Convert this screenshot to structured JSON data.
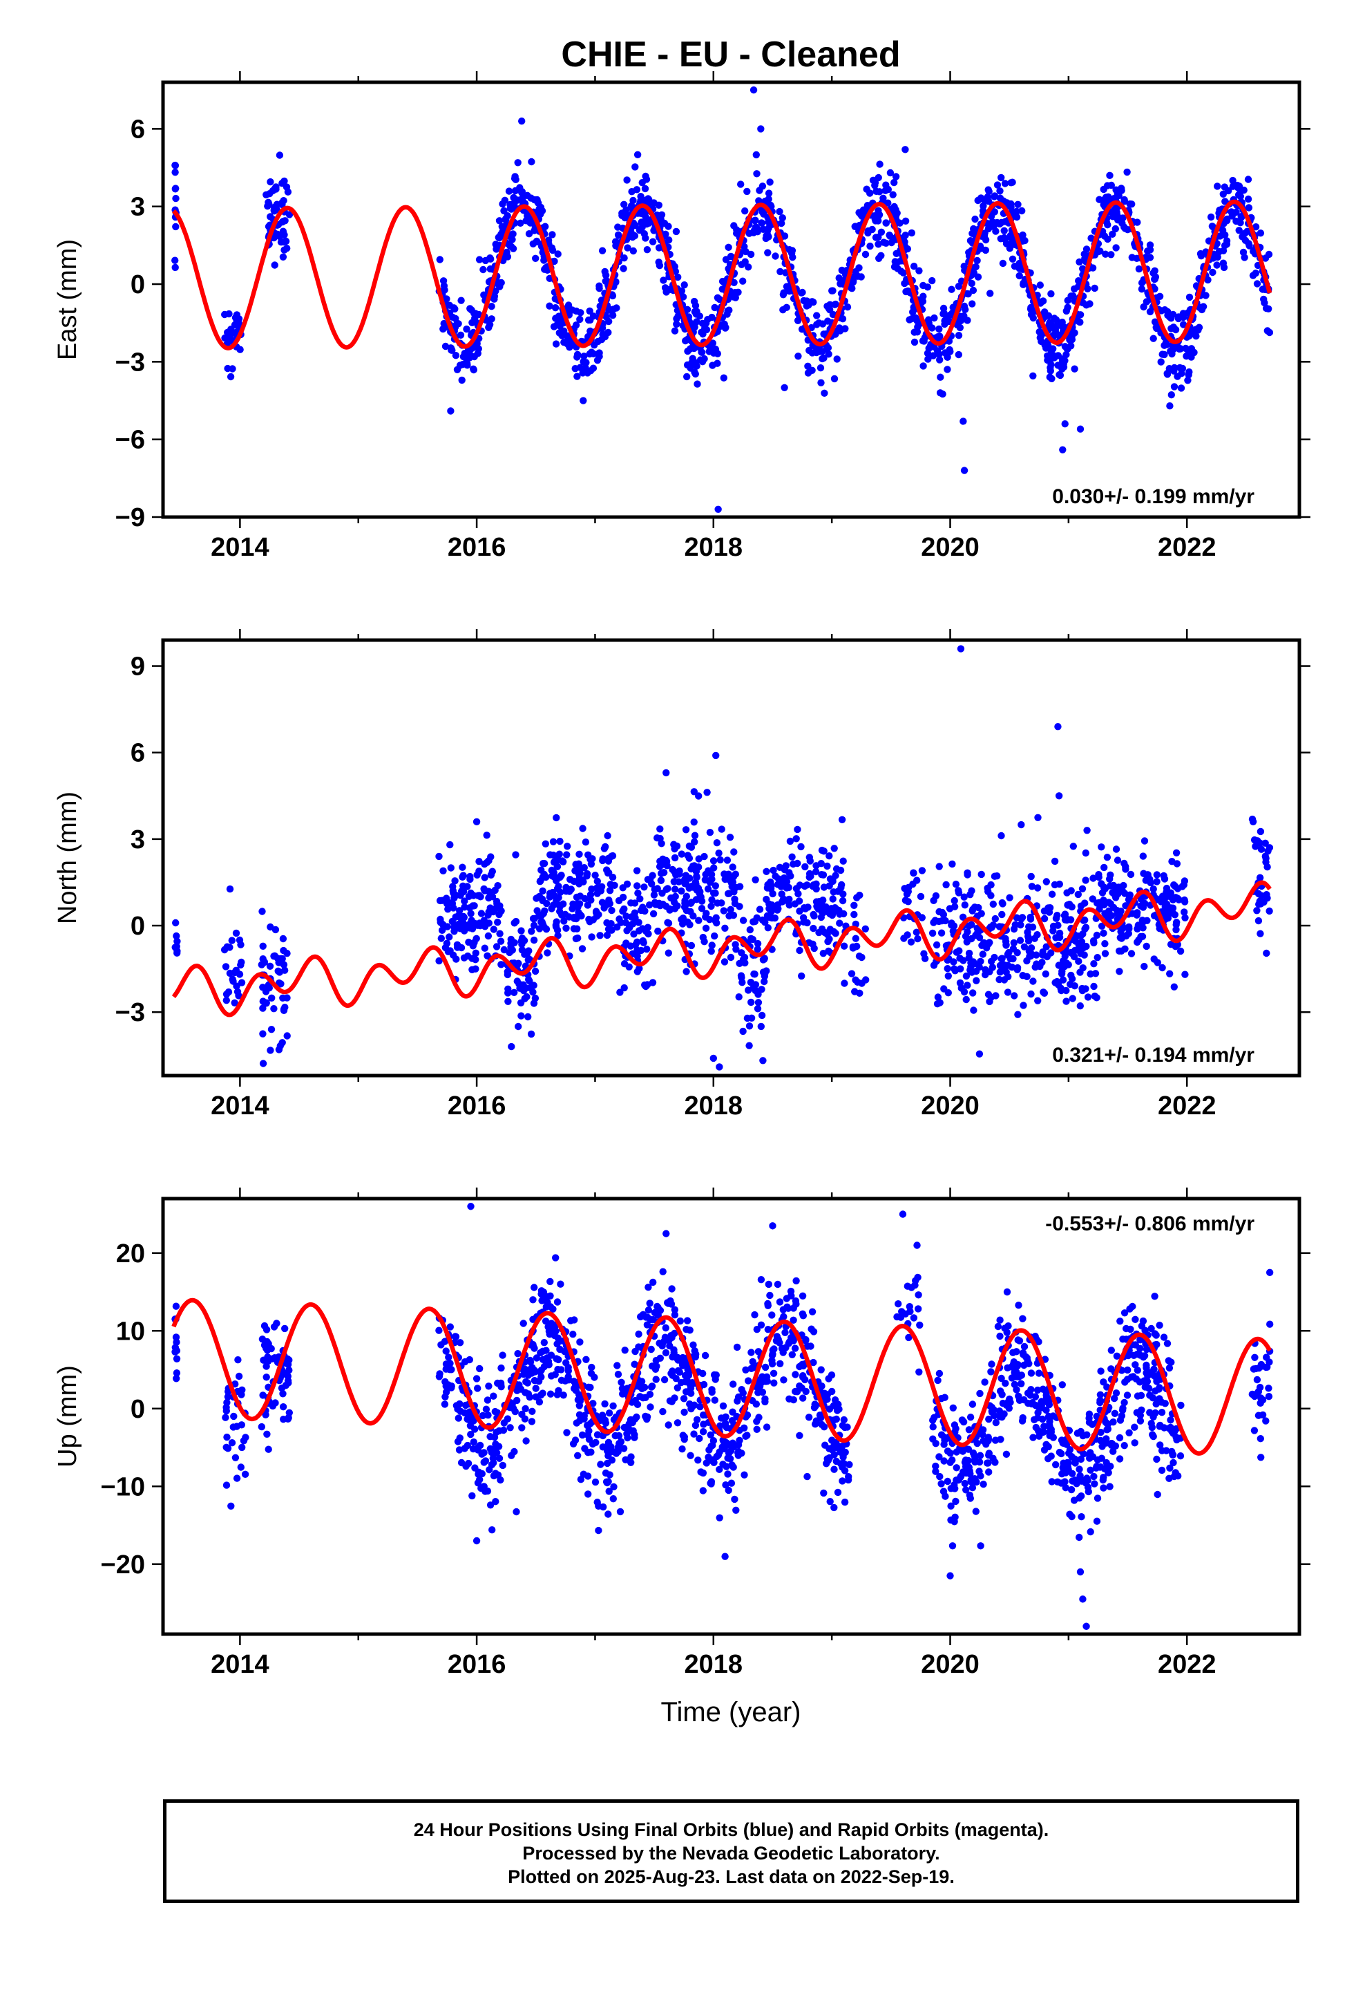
{
  "title": "CHIE  - EU - Cleaned",
  "xlabel": "Time (year)",
  "footer": {
    "line1": "24 Hour Positions Using Final Orbits (blue) and Rapid Orbits (magenta).",
    "line2": "Processed by the Nevada Geodetic Laboratory.",
    "line3": "Plotted on 2025-Aug-23. Last data on 2022-Sep-19."
  },
  "colors": {
    "final_orbits": "#0000ff",
    "model": "#ff0000",
    "axes": "#000000"
  },
  "chart_data": [
    {
      "type": "scatter",
      "ylabel": "East (mm)",
      "xlim": [
        2013.35,
        2022.95
      ],
      "ylim": [
        -9.0,
        7.8
      ],
      "xticks": [
        2014,
        2016,
        2018,
        2020,
        2022
      ],
      "yticks": [
        6,
        3,
        0,
        -3,
        -6,
        -9
      ],
      "ytick_labels": [
        "6",
        "3",
        "0",
        "−3",
        "−6",
        "−9"
      ],
      "rate_label": "0.030+/- 0.199 mm/yr",
      "rate_position": "bottom-right",
      "series": [
        {
          "kind": "points",
          "x_range": [
            2013.45,
            2013.46
          ],
          "mean": 3.4,
          "amp": 0.0,
          "noise": 0.9,
          "count": 12
        },
        {
          "kind": "points",
          "x_range": [
            2013.87,
            2014.02
          ],
          "mean": -1.9,
          "amp": 0.0,
          "noise": 0.8,
          "count": 30
        },
        {
          "kind": "points",
          "x_range": [
            2014.22,
            2014.42
          ],
          "mean": 2.6,
          "amp": 0.0,
          "noise": 0.8,
          "count": 60
        },
        {
          "kind": "points",
          "x_range": [
            2015.68,
            2022.7
          ],
          "mean": 0.3,
          "amp": 2.7,
          "noise": 0.75,
          "count": 1800
        }
      ],
      "outliers": [
        [
          2020.12,
          -7.2
        ],
        [
          2020.11,
          -5.3
        ],
        [
          2018.04,
          -8.7
        ],
        [
          2020.95,
          -6.4
        ],
        [
          2020.97,
          -5.4
        ],
        [
          2021.1,
          -5.6
        ],
        [
          2018.34,
          7.5
        ],
        [
          2016.38,
          6.3
        ],
        [
          2018.4,
          6.0
        ],
        [
          2017.36,
          5.0
        ],
        [
          2019.62,
          5.2
        ],
        [
          2015.78,
          -4.9
        ],
        [
          2016.9,
          -4.5
        ],
        [
          2018.6,
          -4.0
        ]
      ],
      "model": {
        "offset": 0.35,
        "trend": 0.03,
        "annual_amp": 2.7,
        "annual_peak": 2013.4,
        "semi_amp": 0.0,
        "semi_peak": 2013.4,
        "x_range": [
          2013.44,
          2022.7
        ]
      }
    },
    {
      "type": "scatter",
      "ylabel": "North (mm)",
      "xlim": [
        2013.35,
        2022.95
      ],
      "ylim": [
        -5.2,
        9.9
      ],
      "xticks": [
        2014,
        2016,
        2018,
        2020,
        2022
      ],
      "yticks": [
        9,
        6,
        3,
        0,
        -3
      ],
      "ytick_labels": [
        "9",
        "6",
        "3",
        "0",
        "−3"
      ],
      "rate_label": "0.321+/- 0.194 mm/yr",
      "rate_position": "bottom-right",
      "series": [
        {
          "kind": "points",
          "x_range": [
            2013.45,
            2013.47
          ],
          "mean": -0.4,
          "amp": 0.0,
          "noise": 0.9,
          "count": 8
        },
        {
          "kind": "points",
          "x_range": [
            2013.87,
            2014.02
          ],
          "mean": -1.1,
          "amp": 0.0,
          "noise": 0.9,
          "count": 25
        },
        {
          "kind": "points",
          "x_range": [
            2014.18,
            2014.4
          ],
          "mean": -1.9,
          "amp": 0.0,
          "noise": 1.0,
          "count": 50
        },
        {
          "kind": "points",
          "x_range": [
            2015.68,
            2016.2
          ],
          "mean": 0.5,
          "amp": 0.0,
          "noise": 1.1,
          "count": 140
        },
        {
          "kind": "points",
          "x_range": [
            2016.2,
            2016.5
          ],
          "mean": -1.3,
          "amp": 0.0,
          "noise": 1.0,
          "count": 70
        },
        {
          "kind": "points",
          "x_range": [
            2016.5,
            2017.2
          ],
          "mean": 1.0,
          "amp": 0.0,
          "noise": 1.0,
          "count": 180
        },
        {
          "kind": "points",
          "x_range": [
            2017.2,
            2017.45
          ],
          "mean": -0.3,
          "amp": 0.0,
          "noise": 1.0,
          "count": 60
        },
        {
          "kind": "points",
          "x_range": [
            2017.45,
            2018.2
          ],
          "mean": 1.2,
          "amp": 0.0,
          "noise": 1.2,
          "count": 190
        },
        {
          "kind": "points",
          "x_range": [
            2018.2,
            2018.45
          ],
          "mean": -1.2,
          "amp": 0.0,
          "noise": 1.2,
          "count": 60
        },
        {
          "kind": "points",
          "x_range": [
            2018.45,
            2019.1
          ],
          "mean": 0.9,
          "amp": 0.0,
          "noise": 1.0,
          "count": 160
        },
        {
          "kind": "points",
          "x_range": [
            2019.1,
            2019.3
          ],
          "mean": -1.0,
          "amp": 0.0,
          "noise": 0.9,
          "count": 25
        },
        {
          "kind": "points",
          "x_range": [
            2019.6,
            2019.8
          ],
          "mean": 0.8,
          "amp": 0.0,
          "noise": 0.9,
          "count": 25
        },
        {
          "kind": "points",
          "x_range": [
            2019.85,
            2021.25
          ],
          "mean": -0.6,
          "amp": 0.0,
          "noise": 1.2,
          "count": 350
        },
        {
          "kind": "points",
          "x_range": [
            2021.25,
            2022.0
          ],
          "mean": 0.6,
          "amp": 0.0,
          "noise": 0.9,
          "count": 190
        },
        {
          "kind": "points",
          "x_range": [
            2022.55,
            2022.7
          ],
          "mean": 1.5,
          "amp": 0.0,
          "noise": 1.0,
          "count": 35
        }
      ],
      "outliers": [
        [
          2020.09,
          9.6
        ],
        [
          2020.91,
          6.9
        ],
        [
          2018.02,
          5.9
        ],
        [
          2017.6,
          5.3
        ],
        [
          2020.92,
          4.5
        ],
        [
          2018.0,
          -4.6
        ],
        [
          2018.05,
          -4.9
        ],
        [
          2014.33,
          -4.3
        ],
        [
          2020.6,
          3.5
        ],
        [
          2016.0,
          3.6
        ]
      ],
      "model": {
        "offset": -0.85,
        "trend": 0.321,
        "annual_amp": 0.4,
        "annual_peak": 2013.5,
        "semi_amp": 0.6,
        "semi_peak": 2013.65,
        "x_range": [
          2013.44,
          2022.7
        ]
      }
    },
    {
      "type": "scatter",
      "ylabel": "Up (mm)",
      "xlim": [
        2013.35,
        2022.95
      ],
      "ylim": [
        -29,
        27
      ],
      "xticks": [
        2014,
        2016,
        2018,
        2020,
        2022
      ],
      "yticks": [
        20,
        10,
        0,
        -10,
        -20
      ],
      "ytick_labels": [
        "20",
        "10",
        "0",
        "−10",
        "−20"
      ],
      "rate_label": "-0.553+/- 0.806 mm/yr",
      "rate_position": "top-right",
      "series": [
        {
          "kind": "points",
          "x_range": [
            2013.45,
            2013.47
          ],
          "mean": 10.0,
          "amp": 0.0,
          "noise": 3.0,
          "count": 12
        },
        {
          "kind": "points",
          "x_range": [
            2013.87,
            2014.05
          ],
          "mean": -1.5,
          "amp": 0.0,
          "noise": 4.0,
          "count": 35
        },
        {
          "kind": "points",
          "x_range": [
            2014.18,
            2014.42
          ],
          "mean": 4.0,
          "amp": 0.0,
          "noise": 4.0,
          "count": 60
        },
        {
          "kind": "points",
          "x_range": [
            2015.68,
            2019.15
          ],
          "mean": 1.8,
          "amp": 7.0,
          "noise": 4.2,
          "count": 900
        },
        {
          "kind": "points",
          "x_range": [
            2019.55,
            2019.75
          ],
          "mean": 12.0,
          "amp": 0.0,
          "noise": 3.5,
          "count": 20
        },
        {
          "kind": "points",
          "x_range": [
            2019.85,
            2021.95
          ],
          "mean": -1.5,
          "amp": 7.0,
          "noise": 4.2,
          "count": 560
        },
        {
          "kind": "points",
          "x_range": [
            2022.55,
            2022.7
          ],
          "mean": 3.0,
          "amp": 0.0,
          "noise": 3.5,
          "count": 30
        }
      ],
      "outliers": [
        [
          2015.95,
          26.0
        ],
        [
          2019.6,
          25.0
        ],
        [
          2018.5,
          23.5
        ],
        [
          2021.15,
          -28.0
        ],
        [
          2021.12,
          -24.5
        ],
        [
          2021.1,
          -21.0
        ],
        [
          2016.0,
          -17.0
        ],
        [
          2020.0,
          -21.5
        ],
        [
          2022.7,
          17.5
        ],
        [
          2017.6,
          22.5
        ],
        [
          2019.72,
          21.0
        ]
      ],
      "model": {
        "offset": 4.0,
        "trend": -0.553,
        "annual_amp": 7.5,
        "annual_peak": 2013.6,
        "semi_amp": 0.0,
        "semi_peak": 2013.6,
        "x_range": [
          2013.44,
          2022.7
        ]
      }
    }
  ]
}
